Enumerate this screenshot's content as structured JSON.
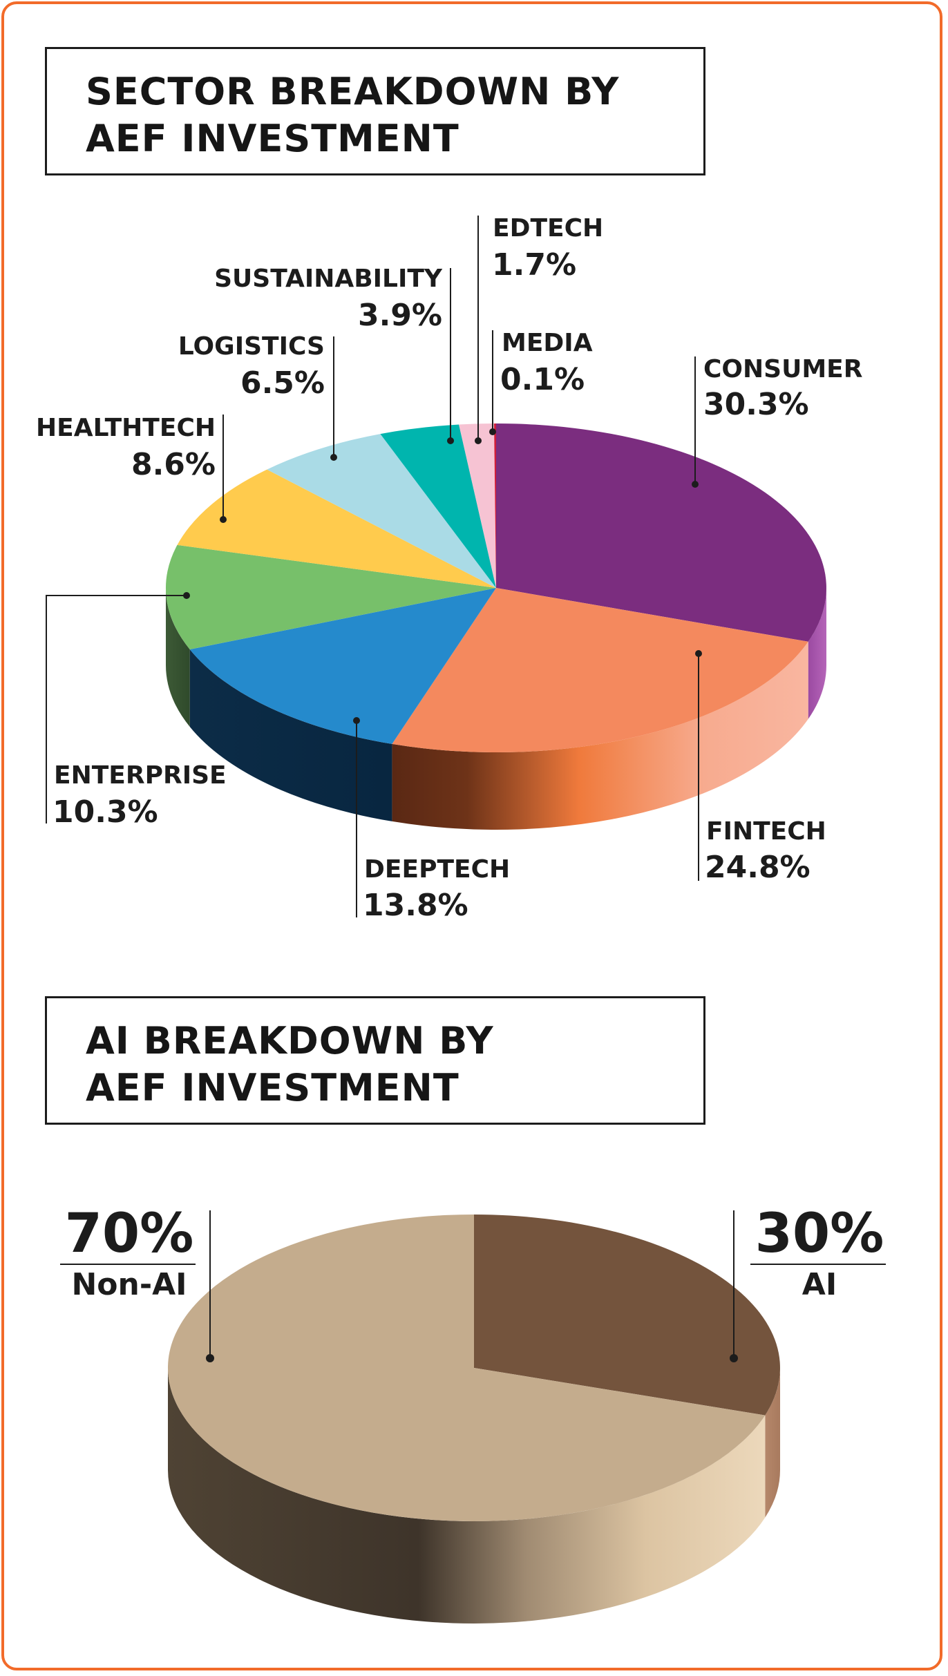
{
  "chart_data": [
    {
      "type": "pie",
      "title": "SECTOR BREAKDOWN BY AEF INVESTMENT",
      "title_lines": [
        "SECTOR BREAKDOWN BY",
        "AEF INVESTMENT"
      ],
      "slices": [
        {
          "label": "CONSUMER",
          "value": 30.3,
          "value_label": "30.3%",
          "color": "#7b2d7f"
        },
        {
          "label": "FINTECH",
          "value": 24.8,
          "value_label": "24.8%",
          "color": "#f4895e"
        },
        {
          "label": "DEEPTECH",
          "value": 13.8,
          "value_label": "13.8%",
          "color": "#258acc"
        },
        {
          "label": "ENTERPRISE",
          "value": 10.3,
          "value_label": "10.3%",
          "color": "#77c06a"
        },
        {
          "label": "HEALTHTECH",
          "value": 8.6,
          "value_label": "8.6%",
          "color": "#ffcb4d"
        },
        {
          "label": "LOGISTICS",
          "value": 6.5,
          "value_label": "6.5%",
          "color": "#aadbe6"
        },
        {
          "label": "SUSTAINABILITY",
          "value": 3.9,
          "value_label": "3.9%",
          "color": "#00b5ae"
        },
        {
          "label": "EDTECH",
          "value": 1.7,
          "value_label": "1.7%",
          "color": "#f6c3d3"
        },
        {
          "label": "MEDIA",
          "value": 0.1,
          "value_label": "0.1%",
          "color": "#cf1d3a"
        }
      ]
    },
    {
      "type": "pie",
      "title": "AI BREAKDOWN BY AEF INVESTMENT",
      "title_lines": [
        "AI BREAKDOWN BY",
        "AEF INVESTMENT"
      ],
      "slices": [
        {
          "label": "AI",
          "value": 30,
          "value_label": "30%",
          "color": "#74543d"
        },
        {
          "label": "Non-AI",
          "value": 70,
          "value_label": "70%",
          "color": "#c4ac8d"
        }
      ]
    }
  ]
}
